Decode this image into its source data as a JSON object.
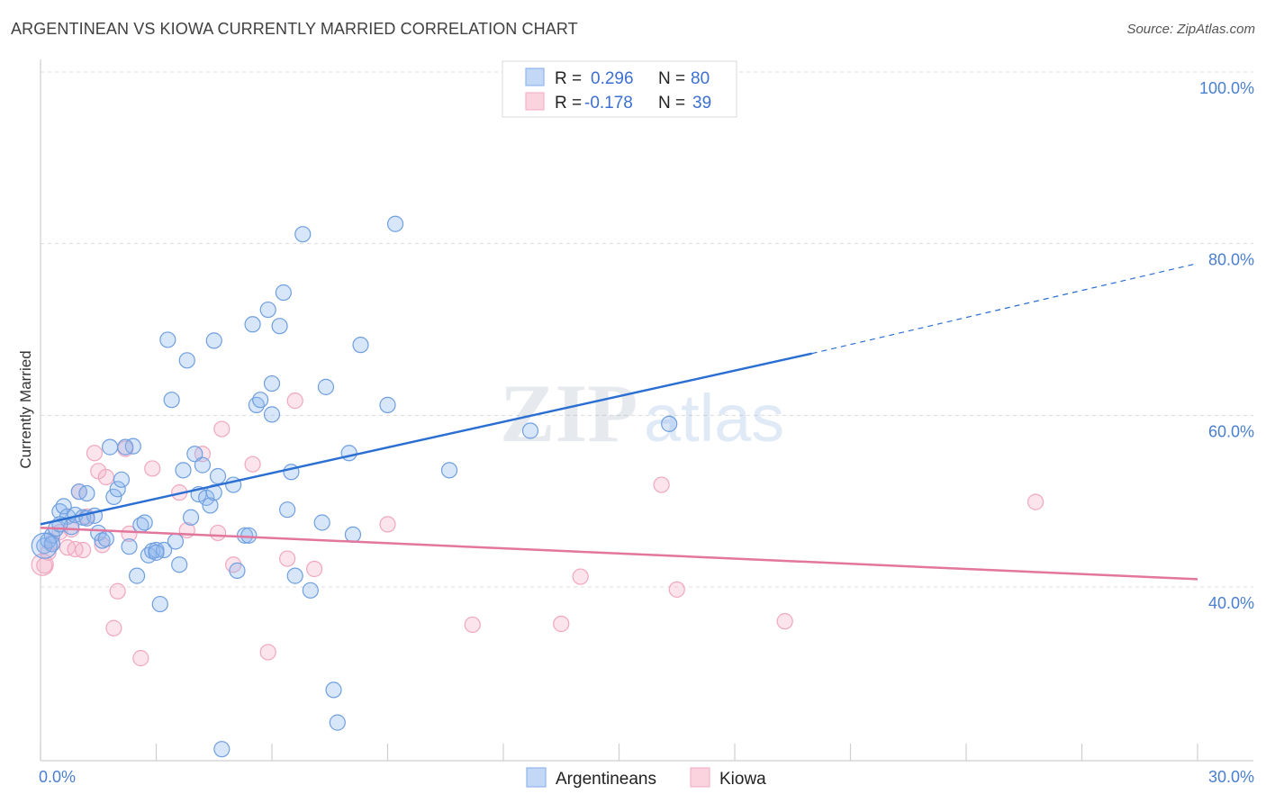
{
  "title": "ARGENTINEAN VS KIOWA CURRENTLY MARRIED CORRELATION CHART",
  "source": "Source: ZipAtlas.com",
  "colors": {
    "blue": "#8fb6ee",
    "blue_line": "#2a6fd1",
    "pink": "#f4b3c8",
    "pink_line": "#e2769c",
    "tick_text": "#4a7fd0"
  },
  "legend": {
    "r_label": "R =",
    "n_label": "N =",
    "blue_r": "0.296",
    "blue_n": "80",
    "pink_r": "-0.178",
    "pink_n": "39"
  },
  "bottom_legend": {
    "blue_label": "Argentineans",
    "pink_label": "Kiowa"
  },
  "chart_data": {
    "type": "scatter",
    "title": "ARGENTINEAN VS KIOWA CURRENTLY MARRIED CORRELATION CHART",
    "xlabel": "",
    "ylabel": "Currently Married",
    "xlim": [
      0,
      30
    ],
    "ylim": [
      20,
      100
    ],
    "x_tick_labels": [
      "0.0%",
      "30.0%"
    ],
    "y_ticks": [
      {
        "value": 100,
        "label": "100.0%"
      },
      {
        "value": 80,
        "label": "80.0%"
      },
      {
        "value": 60,
        "label": "60.0%"
      },
      {
        "value": 40,
        "label": "40.0%"
      }
    ],
    "series": [
      {
        "name": "Argentineans",
        "r": 0.296,
        "n": 80,
        "trend": {
          "x0": 0,
          "y0": 47.3,
          "x1": 20,
          "y1": 67.2,
          "dash_to_x": 30,
          "dash_to_y": 77.7
        },
        "points": [
          [
            0.1,
            44.8
          ],
          [
            0.2,
            45.4
          ],
          [
            0.3,
            46.0
          ],
          [
            0.4,
            46.8
          ],
          [
            0.5,
            48.8
          ],
          [
            0.6,
            49.4
          ],
          [
            0.7,
            48.2
          ],
          [
            0.8,
            47.0
          ],
          [
            0.9,
            48.4
          ],
          [
            1.0,
            51.1
          ],
          [
            1.1,
            48.1
          ],
          [
            1.2,
            50.9
          ],
          [
            1.4,
            48.3
          ],
          [
            1.5,
            46.3
          ],
          [
            1.6,
            45.4
          ],
          [
            1.7,
            45.6
          ],
          [
            1.8,
            56.3
          ],
          [
            1.9,
            50.5
          ],
          [
            2.0,
            51.4
          ],
          [
            2.1,
            52.5
          ],
          [
            2.3,
            44.7
          ],
          [
            2.4,
            56.4
          ],
          [
            2.5,
            41.3
          ],
          [
            2.6,
            47.2
          ],
          [
            2.7,
            47.5
          ],
          [
            2.8,
            43.7
          ],
          [
            2.9,
            44.2
          ],
          [
            3.0,
            44.3
          ],
          [
            3.1,
            38.0
          ],
          [
            3.2,
            44.3
          ],
          [
            3.3,
            68.8
          ],
          [
            3.4,
            61.8
          ],
          [
            3.5,
            45.3
          ],
          [
            3.6,
            42.6
          ],
          [
            3.7,
            53.6
          ],
          [
            3.8,
            66.4
          ],
          [
            3.9,
            48.1
          ],
          [
            4.0,
            55.5
          ],
          [
            4.1,
            50.8
          ],
          [
            4.2,
            54.2
          ],
          [
            4.3,
            50.4
          ],
          [
            4.4,
            49.5
          ],
          [
            4.5,
            68.7
          ],
          [
            4.6,
            52.9
          ],
          [
            4.7,
            21.1
          ],
          [
            5.0,
            51.9
          ],
          [
            5.1,
            41.9
          ],
          [
            5.3,
            46.0
          ],
          [
            5.4,
            46.0
          ],
          [
            5.5,
            70.6
          ],
          [
            5.6,
            61.2
          ],
          [
            5.7,
            61.8
          ],
          [
            5.9,
            72.3
          ],
          [
            6.0,
            63.7
          ],
          [
            6.2,
            70.4
          ],
          [
            6.3,
            74.3
          ],
          [
            6.4,
            49.0
          ],
          [
            6.5,
            53.4
          ],
          [
            6.6,
            41.3
          ],
          [
            6.8,
            81.1
          ],
          [
            7.0,
            39.6
          ],
          [
            7.3,
            47.5
          ],
          [
            7.4,
            63.3
          ],
          [
            7.6,
            28.0
          ],
          [
            7.7,
            24.2
          ],
          [
            8.0,
            55.6
          ],
          [
            8.1,
            46.1
          ],
          [
            8.3,
            68.2
          ],
          [
            9.0,
            61.2
          ],
          [
            9.2,
            82.3
          ],
          [
            10.6,
            53.6
          ],
          [
            12.7,
            58.2
          ],
          [
            16.3,
            59.0
          ],
          [
            0.3,
            45.0
          ],
          [
            0.5,
            47.3
          ],
          [
            1.2,
            48.0
          ],
          [
            2.2,
            56.3
          ],
          [
            4.5,
            51.0
          ],
          [
            6.0,
            60.1
          ],
          [
            3.0,
            44.0
          ]
        ]
      },
      {
        "name": "Kiowa",
        "r": -0.178,
        "n": 39,
        "trend": {
          "x0": 0,
          "y0": 46.9,
          "x1": 30,
          "y1": 40.9
        },
        "points": [
          [
            0.1,
            42.5
          ],
          [
            0.2,
            44.0
          ],
          [
            0.3,
            45.2
          ],
          [
            0.5,
            46.4
          ],
          [
            0.7,
            44.6
          ],
          [
            0.8,
            46.7
          ],
          [
            0.9,
            44.4
          ],
          [
            1.0,
            51.1
          ],
          [
            1.1,
            44.3
          ],
          [
            1.2,
            48.2
          ],
          [
            1.4,
            55.6
          ],
          [
            1.5,
            53.5
          ],
          [
            1.6,
            44.9
          ],
          [
            1.7,
            52.8
          ],
          [
            1.9,
            35.2
          ],
          [
            2.0,
            39.5
          ],
          [
            2.2,
            56.1
          ],
          [
            2.3,
            46.2
          ],
          [
            2.6,
            31.7
          ],
          [
            2.9,
            53.8
          ],
          [
            3.6,
            51.0
          ],
          [
            3.8,
            46.6
          ],
          [
            4.2,
            55.5
          ],
          [
            4.6,
            46.3
          ],
          [
            4.7,
            58.4
          ],
          [
            5.0,
            42.6
          ],
          [
            5.5,
            54.3
          ],
          [
            5.9,
            32.4
          ],
          [
            6.4,
            43.3
          ],
          [
            6.6,
            61.7
          ],
          [
            7.1,
            42.1
          ],
          [
            9.0,
            47.3
          ],
          [
            11.2,
            35.6
          ],
          [
            13.5,
            35.7
          ],
          [
            14.0,
            41.2
          ],
          [
            16.1,
            51.9
          ],
          [
            16.5,
            39.7
          ],
          [
            19.3,
            36.0
          ],
          [
            25.8,
            49.9
          ]
        ]
      }
    ]
  }
}
